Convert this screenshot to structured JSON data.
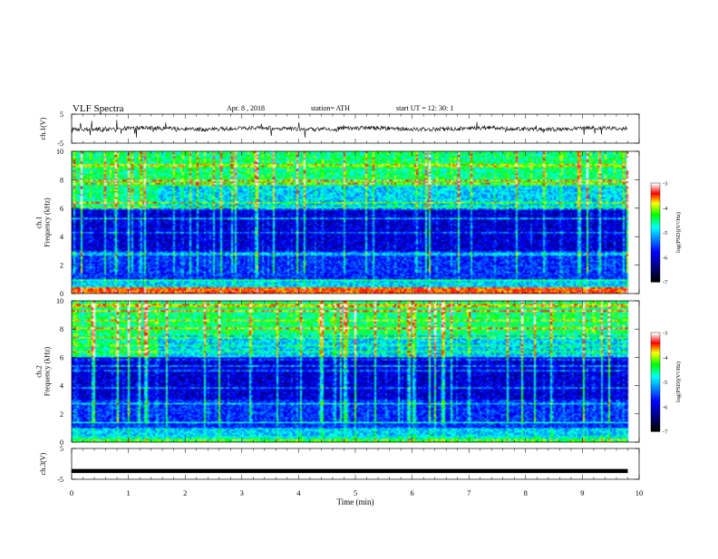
{
  "header": {
    "title": "VLF  Spectra",
    "date": "Apr. 8  , 2018",
    "station": "station= ATH",
    "start": "start  UT  =    12: 30: 1"
  },
  "chart_data": [
    {
      "type": "line",
      "panel": "ch1-waveform",
      "ylabel": "ch.1(V)",
      "ylim": [
        -5,
        5
      ],
      "yticks": [
        "5",
        "-5"
      ],
      "x": [
        0,
        1,
        2,
        3,
        4,
        5,
        6,
        7,
        8,
        9,
        9.8
      ],
      "values": [
        0,
        0,
        0,
        0,
        0,
        0,
        0,
        0,
        0,
        0,
        0
      ]
    },
    {
      "type": "heatmap",
      "panel": "ch1-spectrogram",
      "ylabel": "ch.1\nFrequency  (kHz)",
      "ylim": [
        0,
        10
      ],
      "yticks": [
        "0",
        "2",
        "4",
        "6",
        "8",
        "10"
      ],
      "xlim": [
        0,
        10
      ],
      "colorbar": {
        "label": "log(PSD)(V²/Hz)",
        "range": [
          -7,
          -3
        ],
        "ticks": [
          "-3",
          "-4",
          "-5",
          "-6",
          "-7"
        ]
      }
    },
    {
      "type": "heatmap",
      "panel": "ch2-spectrogram",
      "ylabel": "ch.2\nFrequency  (kHz)",
      "ylim": [
        0,
        10
      ],
      "yticks": [
        "0",
        "2",
        "4",
        "6",
        "8",
        "10"
      ],
      "xlim": [
        0,
        10
      ],
      "colorbar": {
        "label": "log(PSD)(V²/Hz)",
        "range": [
          -7,
          -3
        ],
        "ticks": [
          "-3",
          "-4",
          "-5",
          "-6",
          "-7"
        ]
      }
    },
    {
      "type": "line",
      "panel": "ch3-waveform",
      "ylabel": "ch.3(V)",
      "ylim": [
        -5,
        5
      ],
      "yticks": [
        "5",
        "-5"
      ],
      "x": [
        0,
        9.8
      ],
      "values": [
        -2.3,
        -2.3
      ]
    }
  ],
  "xaxis": {
    "label": "Time  (min)",
    "range": [
      0,
      10
    ],
    "ticks": [
      "0",
      "1",
      "2",
      "3",
      "4",
      "5",
      "6",
      "7",
      "8",
      "9",
      "10"
    ]
  },
  "colors": {
    "palette": [
      "#000000",
      "#00006a",
      "#0000ff",
      "#0088ff",
      "#00ffff",
      "#00ff00",
      "#ffff00",
      "#ff0000",
      "#ffffff"
    ]
  }
}
